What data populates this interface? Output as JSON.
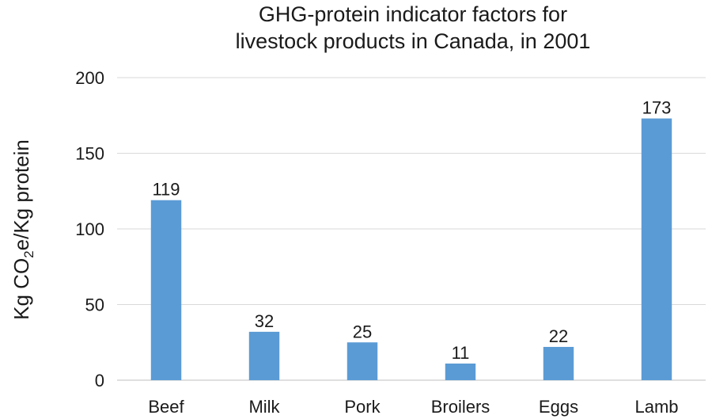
{
  "chart_data": {
    "type": "bar",
    "title_lines": [
      "GHG-protein indicator factors for",
      "livestock products in Canada, in 2001"
    ],
    "ylabel_parts": [
      "Kg CO",
      "2",
      "e/Kg protein"
    ],
    "xlabel": "",
    "categories": [
      "Beef",
      "Milk",
      "Pork",
      "Broilers",
      "Eggs",
      "Lamb"
    ],
    "values": [
      119,
      32,
      25,
      11,
      22,
      173
    ],
    "data_labels": [
      "119",
      "32",
      "25",
      "11",
      "22",
      "173"
    ],
    "ylim": [
      0,
      200
    ],
    "yticks": [
      0,
      50,
      100,
      150,
      200
    ],
    "ytick_labels": [
      "0",
      "50",
      "100",
      "150",
      "200"
    ],
    "grid": true,
    "bar_color": "#5b9bd5",
    "legend": "none"
  }
}
